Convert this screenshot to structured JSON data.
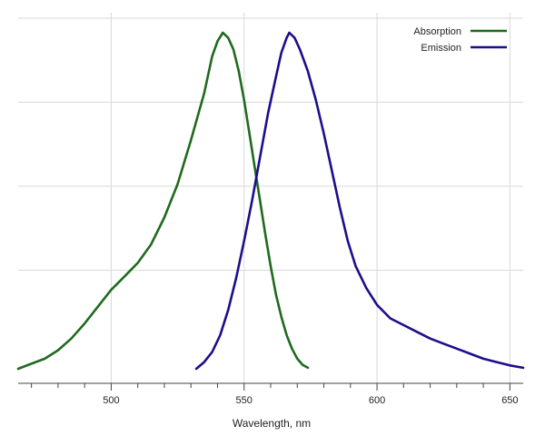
{
  "chart_data": {
    "type": "line",
    "title": "",
    "xlabel": "Wavelength, nm",
    "ylabel": "",
    "xlim": [
      465,
      655
    ],
    "ylim": [
      0,
      1.0
    ],
    "x_ticks": [
      500,
      550,
      600,
      650
    ],
    "x_minor_tick_step": 10,
    "y_gridlines": [
      0.25,
      0.5,
      0.75,
      1.0
    ],
    "grid": true,
    "legend_position": "top-right",
    "series": [
      {
        "name": "Absorption",
        "color": "#1f6a1f",
        "points": [
          [
            465,
            0.0
          ],
          [
            470,
            0.015
          ],
          [
            475,
            0.03
          ],
          [
            480,
            0.055
          ],
          [
            485,
            0.09
          ],
          [
            490,
            0.135
          ],
          [
            495,
            0.185
          ],
          [
            500,
            0.235
          ],
          [
            505,
            0.275
          ],
          [
            510,
            0.315
          ],
          [
            515,
            0.37
          ],
          [
            520,
            0.45
          ],
          [
            525,
            0.55
          ],
          [
            530,
            0.68
          ],
          [
            535,
            0.82
          ],
          [
            538,
            0.93
          ],
          [
            540,
            0.975
          ],
          [
            542,
            1.0
          ],
          [
            544,
            0.985
          ],
          [
            546,
            0.95
          ],
          [
            548,
            0.885
          ],
          [
            550,
            0.8
          ],
          [
            552,
            0.7
          ],
          [
            554,
            0.6
          ],
          [
            556,
            0.5
          ],
          [
            558,
            0.4
          ],
          [
            560,
            0.305
          ],
          [
            562,
            0.22
          ],
          [
            564,
            0.155
          ],
          [
            566,
            0.1
          ],
          [
            568,
            0.06
          ],
          [
            570,
            0.03
          ],
          [
            572,
            0.012
          ],
          [
            574,
            0.003
          ]
        ]
      },
      {
        "name": "Emission",
        "color": "#1c0e8c",
        "points": [
          [
            532,
            0.0
          ],
          [
            535,
            0.02
          ],
          [
            538,
            0.05
          ],
          [
            541,
            0.1
          ],
          [
            544,
            0.175
          ],
          [
            547,
            0.27
          ],
          [
            550,
            0.38
          ],
          [
            553,
            0.5
          ],
          [
            556,
            0.63
          ],
          [
            559,
            0.76
          ],
          [
            562,
            0.87
          ],
          [
            564,
            0.94
          ],
          [
            566,
            0.985
          ],
          [
            567,
            1.0
          ],
          [
            569,
            0.985
          ],
          [
            571,
            0.95
          ],
          [
            574,
            0.885
          ],
          [
            577,
            0.8
          ],
          [
            580,
            0.7
          ],
          [
            583,
            0.59
          ],
          [
            586,
            0.48
          ],
          [
            589,
            0.38
          ],
          [
            592,
            0.305
          ],
          [
            596,
            0.24
          ],
          [
            600,
            0.19
          ],
          [
            605,
            0.15
          ],
          [
            610,
            0.13
          ],
          [
            615,
            0.11
          ],
          [
            620,
            0.09
          ],
          [
            625,
            0.075
          ],
          [
            630,
            0.06
          ],
          [
            635,
            0.045
          ],
          [
            640,
            0.03
          ],
          [
            645,
            0.02
          ],
          [
            650,
            0.01
          ],
          [
            655,
            0.003
          ]
        ]
      }
    ]
  }
}
